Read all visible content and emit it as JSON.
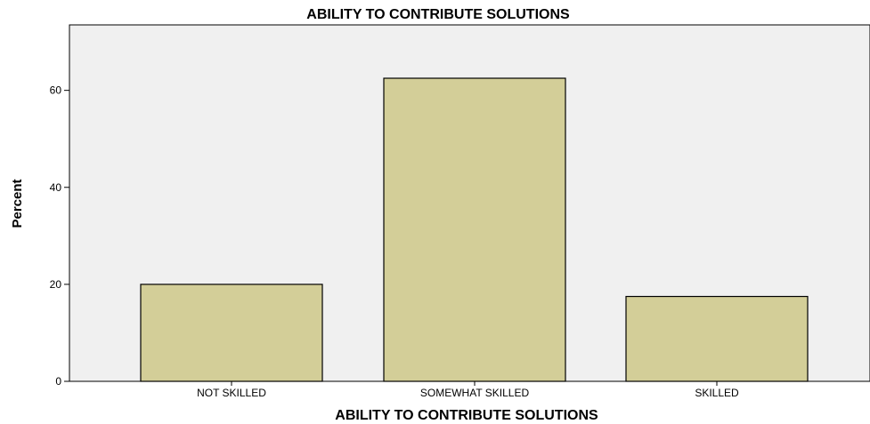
{
  "chart_data": {
    "type": "bar",
    "title": "ABILITY TO CONTRIBUTE SOLUTIONS",
    "xlabel": "ABILITY TO CONTRIBUTE SOLUTIONS",
    "ylabel": "Percent",
    "categories": [
      "NOT SKILLED",
      "SOMEWHAT SKILLED",
      "SKILLED"
    ],
    "values": [
      20.0,
      62.5,
      17.5
    ],
    "yticks": [
      0,
      20,
      40,
      60
    ],
    "ylim": [
      0,
      73.5
    ],
    "grid": false,
    "colors": {
      "bar_fill": "#d3ce98",
      "bar_stroke": "#000000",
      "plot_background": "#f0f0f0"
    }
  }
}
